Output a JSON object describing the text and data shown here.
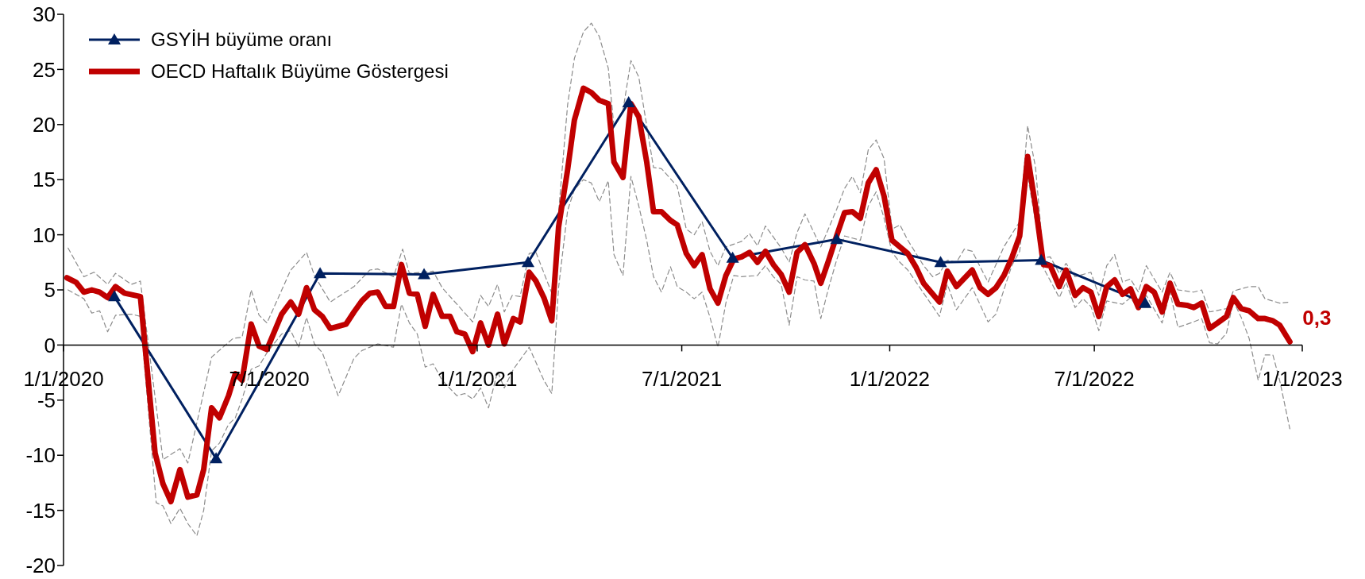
{
  "chart_data": {
    "type": "line",
    "xlim": [
      "2020-01-01",
      "2023-01-01"
    ],
    "xticks": [
      {
        "value": "2020-01-01",
        "label": "1/1/2020"
      },
      {
        "value": "2020-07-01",
        "label": "7/1/2020"
      },
      {
        "value": "2021-01-01",
        "label": "1/1/2021"
      },
      {
        "value": "2021-07-01",
        "label": "7/1/2021"
      },
      {
        "value": "2022-01-01",
        "label": "1/1/2022"
      },
      {
        "value": "2022-07-01",
        "label": "7/1/2022"
      },
      {
        "value": "2023-01-01",
        "label": "1/1/2023"
      }
    ],
    "ylim": [
      -20,
      30
    ],
    "yticks": [
      -20,
      -15,
      -10,
      -5,
      0,
      5,
      10,
      15,
      20,
      25,
      30
    ],
    "legend": "top left",
    "annotations": [
      {
        "text": "0,3",
        "x": "2022-12-21",
        "y": 0.3
      }
    ],
    "series": [
      {
        "name": "GSYİH büyüme oranı",
        "color": "#002060",
        "marker": "triangle",
        "line_style": "solid",
        "x": [
          "2020-02-15",
          "2020-05-15",
          "2020-08-15",
          "2020-11-15",
          "2021-02-15",
          "2021-05-15",
          "2021-08-15",
          "2021-11-15",
          "2022-02-15",
          "2022-05-15",
          "2022-08-15"
        ],
        "values": [
          4.4,
          -10.3,
          6.5,
          6.4,
          7.5,
          22.0,
          7.9,
          9.6,
          7.5,
          7.7,
          3.8
        ]
      },
      {
        "name": "OECD Haftalık Büyüme Göstergesi",
        "color": "#c00000",
        "marker": "none",
        "line_style": "solid",
        "x": [
          "2020-01-04",
          "2020-01-12",
          "2020-01-19",
          "2020-01-26",
          "2020-02-02",
          "2020-02-09",
          "2020-02-16",
          "2020-02-24",
          "2020-03-09",
          "2020-03-22",
          "2020-03-29",
          "2020-04-05",
          "2020-04-13",
          "2020-04-20",
          "2020-04-28",
          "2020-05-04",
          "2020-05-11",
          "2020-05-18",
          "2020-05-26",
          "2020-06-01",
          "2020-06-07",
          "2020-06-15",
          "2020-06-22",
          "2020-06-29",
          "2020-07-12",
          "2020-07-20",
          "2020-07-27",
          "2020-08-03",
          "2020-08-10",
          "2020-08-17",
          "2020-08-24",
          "2020-09-07",
          "2020-09-14",
          "2020-09-21",
          "2020-09-28",
          "2020-10-05",
          "2020-10-12",
          "2020-10-19",
          "2020-10-26",
          "2020-11-02",
          "2020-11-09",
          "2020-11-16",
          "2020-11-23",
          "2020-12-01",
          "2020-12-08",
          "2020-12-14",
          "2020-12-21",
          "2020-12-28",
          "2021-01-04",
          "2021-01-11",
          "2021-01-19",
          "2021-01-25",
          "2021-02-02",
          "2021-02-08",
          "2021-02-16",
          "2021-02-22",
          "2021-03-01",
          "2021-03-08",
          "2021-03-14",
          "2021-03-22",
          "2021-03-28",
          "2021-04-05",
          "2021-04-12",
          "2021-04-19",
          "2021-04-27",
          "2021-05-02",
          "2021-05-10",
          "2021-05-17",
          "2021-05-24",
          "2021-05-31",
          "2021-06-06",
          "2021-06-13",
          "2021-06-21",
          "2021-06-27",
          "2021-07-05",
          "2021-07-12",
          "2021-07-19",
          "2021-07-26",
          "2021-08-02",
          "2021-08-09",
          "2021-08-16",
          "2021-08-23",
          "2021-08-30",
          "2021-09-06",
          "2021-09-13",
          "2021-09-20",
          "2021-09-27",
          "2021-10-04",
          "2021-10-11",
          "2021-10-18",
          "2021-10-26",
          "2021-11-01",
          "2021-11-08",
          "2021-11-15",
          "2021-11-22",
          "2021-11-29",
          "2021-12-06",
          "2021-12-13",
          "2021-12-20",
          "2021-12-27",
          "2022-01-03",
          "2022-01-10",
          "2022-01-17",
          "2022-01-24",
          "2022-01-31",
          "2022-02-14",
          "2022-02-21",
          "2022-03-01",
          "2022-03-15",
          "2022-03-22",
          "2022-03-29",
          "2022-04-05",
          "2022-04-12",
          "2022-04-19",
          "2022-04-26",
          "2022-05-03",
          "2022-05-10",
          "2022-05-17",
          "2022-05-23",
          "2022-05-31",
          "2022-06-06",
          "2022-06-14",
          "2022-06-21",
          "2022-06-28",
          "2022-07-05",
          "2022-07-12",
          "2022-07-19",
          "2022-07-26",
          "2022-08-02",
          "2022-08-09",
          "2022-08-16",
          "2022-08-23",
          "2022-08-30",
          "2022-09-06",
          "2022-09-13",
          "2022-09-21",
          "2022-09-27",
          "2022-10-04",
          "2022-10-11",
          "2022-10-18",
          "2022-10-26",
          "2022-11-01",
          "2022-11-08",
          "2022-11-15",
          "2022-11-23",
          "2022-11-29",
          "2022-12-06",
          "2022-12-12",
          "2022-12-21"
        ],
        "values": [
          6.1,
          5.7,
          4.8,
          5.0,
          4.8,
          4.3,
          5.3,
          4.7,
          4.4,
          -9.8,
          -12.6,
          -14.2,
          -11.3,
          -13.8,
          -13.6,
          -11.3,
          -5.7,
          -6.6,
          -4.6,
          -2.6,
          -3.2,
          1.9,
          -0.1,
          -0.4,
          2.8,
          3.9,
          2.8,
          5.2,
          3.2,
          2.6,
          1.5,
          1.9,
          3.0,
          4.0,
          4.7,
          4.8,
          3.5,
          3.5,
          7.3,
          4.7,
          4.6,
          1.7,
          4.6,
          2.6,
          2.6,
          1.2,
          1.0,
          -0.6,
          2.0,
          0.0,
          2.8,
          0.1,
          2.4,
          2.1,
          6.6,
          5.8,
          4.3,
          2.2,
          10.7,
          15.9,
          20.4,
          23.3,
          22.9,
          22.2,
          21.9,
          16.6,
          15.2,
          21.9,
          20.7,
          16.6,
          12.1,
          12.1,
          11.3,
          10.9,
          8.3,
          7.2,
          8.2,
          5.1,
          3.8,
          6.3,
          7.8,
          8.0,
          8.4,
          7.5,
          8.5,
          7.3,
          6.4,
          4.8,
          8.4,
          9.1,
          7.4,
          5.6,
          7.7,
          9.9,
          12.0,
          12.1,
          11.5,
          14.7,
          15.9,
          13.5,
          9.5,
          8.9,
          8.3,
          7.1,
          5.6,
          3.9,
          6.7,
          5.3,
          6.8,
          5.2,
          4.6,
          5.2,
          6.3,
          7.9,
          9.9,
          17.1,
          12.6,
          7.3,
          7.2,
          5.3,
          6.8,
          4.5,
          5.2,
          4.8,
          2.6,
          5.3,
          5.9,
          4.6,
          5.1,
          3.4,
          5.3,
          4.8,
          3.0,
          5.6,
          3.7,
          3.6,
          3.4,
          3.8,
          1.5,
          2.0,
          2.6,
          4.3,
          3.3,
          3.1,
          2.4,
          2.4,
          2.2,
          1.8,
          0.3
        ]
      },
      {
        "color": "#8c8c8c",
        "marker": "none",
        "line_style": "dashed",
        "x": [
          "2020-01-05",
          "2020-01-19",
          "2020-01-28",
          "2020-02-09",
          "2020-02-16",
          "2020-03-01",
          "2020-03-09",
          "2020-03-29",
          "2020-04-13",
          "2020-04-20",
          "2020-05-11",
          "2020-05-30",
          "2020-06-07",
          "2020-06-15",
          "2020-06-22",
          "2020-06-29",
          "2020-07-20",
          "2020-08-03",
          "2020-08-10",
          "2020-08-24",
          "2020-09-14",
          "2020-09-28",
          "2020-10-05",
          "2020-10-19",
          "2020-10-27",
          "2020-11-02",
          "2020-11-23",
          "2020-12-01",
          "2020-12-28",
          "2021-01-04",
          "2021-01-11",
          "2021-01-19",
          "2021-01-25",
          "2021-02-01",
          "2021-02-08",
          "2021-02-16",
          "2021-02-22",
          "2021-03-08",
          "2021-03-22",
          "2021-03-28",
          "2021-04-05",
          "2021-04-12",
          "2021-04-19",
          "2021-04-27",
          "2021-05-02",
          "2021-05-10",
          "2021-05-17",
          "2021-05-24",
          "2021-06-06",
          "2021-06-13",
          "2021-06-27",
          "2021-07-05",
          "2021-07-12",
          "2021-07-19",
          "2021-07-26",
          "2021-08-02",
          "2021-08-09",
          "2021-08-23",
          "2021-08-30",
          "2021-09-06",
          "2021-09-13",
          "2021-09-27",
          "2021-10-04",
          "2021-10-11",
          "2021-10-18",
          "2021-11-01",
          "2021-11-15",
          "2021-11-22",
          "2021-11-29",
          "2021-12-06",
          "2021-12-13",
          "2021-12-20",
          "2021-12-27",
          "2022-01-03",
          "2022-01-10",
          "2022-01-17",
          "2022-01-31",
          "2022-02-08",
          "2022-02-14",
          "2022-02-21",
          "2022-03-01",
          "2022-03-08",
          "2022-03-15",
          "2022-03-29",
          "2022-04-12",
          "2022-04-26",
          "2022-05-03",
          "2022-05-10",
          "2022-05-17",
          "2022-05-23",
          "2022-05-31",
          "2022-06-06",
          "2022-06-14",
          "2022-06-28",
          "2022-07-05",
          "2022-07-12",
          "2022-07-19",
          "2022-07-26",
          "2022-08-02",
          "2022-08-09",
          "2022-08-16",
          "2022-08-30",
          "2022-09-06",
          "2022-09-13",
          "2022-09-27",
          "2022-10-04",
          "2022-10-11",
          "2022-10-26",
          "2022-11-01",
          "2022-11-15",
          "2022-11-23",
          "2022-11-29",
          "2022-12-12",
          "2022-12-21"
        ],
        "values": [
          8.8,
          6.2,
          6.6,
          5.5,
          6.5,
          5.5,
          5.8,
          -10.4,
          -9.4,
          -10.7,
          -1.1,
          0.6,
          0.7,
          5.0,
          2.7,
          2.0,
          6.8,
          8.4,
          6.3,
          3.9,
          5.3,
          6.8,
          6.9,
          6.2,
          8.7,
          6.5,
          6.7,
          5.2,
          2.1,
          4.5,
          3.5,
          5.5,
          3.0,
          4.5,
          4.4,
          8.3,
          8.4,
          4.7,
          21.8,
          26.0,
          28.4,
          29.2,
          28.0,
          25.1,
          19.8,
          21.3,
          25.8,
          24.3,
          16.1,
          16.0,
          14.4,
          10.5,
          10.0,
          11.2,
          8.5,
          7.2,
          8.9,
          9.4,
          10.1,
          9.0,
          10.8,
          8.8,
          7.5,
          10.2,
          11.9,
          8.9,
          12.3,
          14.2,
          15.3,
          13.8,
          17.7,
          18.6,
          16.9,
          10.5,
          10.9,
          9.5,
          7.2,
          6.2,
          6.5,
          7.7,
          7.5,
          8.7,
          8.5,
          5.7,
          8.9,
          11.2,
          19.9,
          16.1,
          7.9,
          8.0,
          6.5,
          7.4,
          6.2,
          6.6,
          4.5,
          7.2,
          8.2,
          5.7,
          6.0,
          4.8,
          7.2,
          4.8,
          6.6,
          5.0,
          4.8,
          5.0,
          3.0,
          3.3,
          4.9,
          5.3,
          5.3,
          4.2,
          3.8,
          3.9
        ]
      },
      {
        "color": "#8c8c8c",
        "marker": "none",
        "line_style": "dashed",
        "x": [
          "2020-01-05",
          "2020-01-19",
          "2020-01-26",
          "2020-02-02",
          "2020-02-09",
          "2020-02-16",
          "2020-03-01",
          "2020-03-09",
          "2020-03-23",
          "2020-03-29",
          "2020-04-05",
          "2020-04-13",
          "2020-04-20",
          "2020-04-28",
          "2020-05-04",
          "2020-05-11",
          "2020-05-18",
          "2020-05-26",
          "2020-06-01",
          "2020-06-07",
          "2020-06-15",
          "2020-06-22",
          "2020-06-29",
          "2020-07-12",
          "2020-07-20",
          "2020-07-27",
          "2020-08-03",
          "2020-08-10",
          "2020-08-17",
          "2020-08-31",
          "2020-09-07",
          "2020-09-14",
          "2020-09-21",
          "2020-10-05",
          "2020-10-19",
          "2020-10-26",
          "2020-11-02",
          "2020-11-09",
          "2020-11-16",
          "2020-11-23",
          "2020-12-01",
          "2020-12-14",
          "2020-12-21",
          "2020-12-28",
          "2021-01-04",
          "2021-01-11",
          "2021-01-19",
          "2021-01-25",
          "2021-02-02",
          "2021-02-16",
          "2021-03-01",
          "2021-03-08",
          "2021-03-14",
          "2021-03-22",
          "2021-03-28",
          "2021-04-05",
          "2021-04-12",
          "2021-04-19",
          "2021-04-27",
          "2021-05-02",
          "2021-05-10",
          "2021-05-17",
          "2021-05-24",
          "2021-05-31",
          "2021-06-06",
          "2021-06-13",
          "2021-06-21",
          "2021-06-27",
          "2021-07-05",
          "2021-07-12",
          "2021-07-19",
          "2021-07-26",
          "2021-08-02",
          "2021-08-09",
          "2021-08-16",
          "2021-08-23",
          "2021-09-06",
          "2021-09-13",
          "2021-09-20",
          "2021-09-27",
          "2021-10-04",
          "2021-10-11",
          "2021-10-18",
          "2021-10-26",
          "2021-11-01",
          "2021-11-08",
          "2021-11-15",
          "2021-11-22",
          "2021-11-29",
          "2021-12-06",
          "2021-12-13",
          "2021-12-20",
          "2021-12-27",
          "2022-01-03",
          "2022-01-10",
          "2022-01-17",
          "2022-01-31",
          "2022-02-14",
          "2022-02-21",
          "2022-03-01",
          "2022-03-15",
          "2022-03-29",
          "2022-04-05",
          "2022-04-19",
          "2022-04-26",
          "2022-05-03",
          "2022-05-10",
          "2022-05-17",
          "2022-05-31",
          "2022-06-06",
          "2022-06-14",
          "2022-06-21",
          "2022-06-28",
          "2022-07-05",
          "2022-07-12",
          "2022-07-26",
          "2022-08-02",
          "2022-08-09",
          "2022-08-16",
          "2022-08-30",
          "2022-09-06",
          "2022-09-13",
          "2022-09-27",
          "2022-10-04",
          "2022-10-11",
          "2022-10-18",
          "2022-10-26",
          "2022-11-01",
          "2022-11-08",
          "2022-11-15",
          "2022-11-23",
          "2022-11-29",
          "2022-12-06",
          "2022-12-12",
          "2022-12-21"
        ],
        "values": [
          5.0,
          4.2,
          2.9,
          3.1,
          1.2,
          2.7,
          2.8,
          2.6,
          -14.3,
          -14.6,
          -16.2,
          -14.8,
          -16.2,
          -17.3,
          -15.0,
          -9.6,
          -8.9,
          -7.2,
          -6.6,
          -4.9,
          -2.2,
          -1.9,
          -0.7,
          1.0,
          1.3,
          -0.2,
          2.5,
          0.1,
          -0.7,
          -4.6,
          -2.9,
          -1.2,
          -0.5,
          0.1,
          -0.2,
          3.7,
          2.0,
          1.0,
          -2.0,
          -1.7,
          -3.2,
          -4.6,
          -4.4,
          -4.9,
          -3.9,
          -5.7,
          -2.4,
          -3.9,
          -2.2,
          -0.2,
          -3.2,
          -4.4,
          5.2,
          12.2,
          14.1,
          15.0,
          14.7,
          13.0,
          14.9,
          8.2,
          6.3,
          15.3,
          12.6,
          9.5,
          6.2,
          4.8,
          7.1,
          5.3,
          4.8,
          4.2,
          4.8,
          2.5,
          -0.2,
          3.8,
          6.3,
          6.2,
          6.3,
          7.2,
          6.2,
          5.5,
          1.8,
          6.2,
          5.9,
          5.8,
          2.4,
          5.2,
          7.7,
          9.9,
          9.7,
          9.5,
          12.6,
          13.9,
          11.5,
          8.4,
          7.5,
          6.8,
          4.7,
          2.6,
          5.5,
          3.2,
          5.2,
          2.1,
          2.8,
          7.2,
          8.5,
          15.4,
          11.2,
          7.0,
          4.3,
          5.7,
          3.4,
          4.2,
          3.5,
          1.3,
          4.0,
          3.7,
          4.3,
          3.3,
          4.5,
          2.0,
          4.8,
          1.6,
          2.1,
          2.4,
          0.2,
          0.1,
          1.1,
          4.0,
          2.5,
          0.6,
          -3.2,
          -0.9,
          -0.9,
          -3.2,
          -7.6
        ]
      }
    ]
  }
}
